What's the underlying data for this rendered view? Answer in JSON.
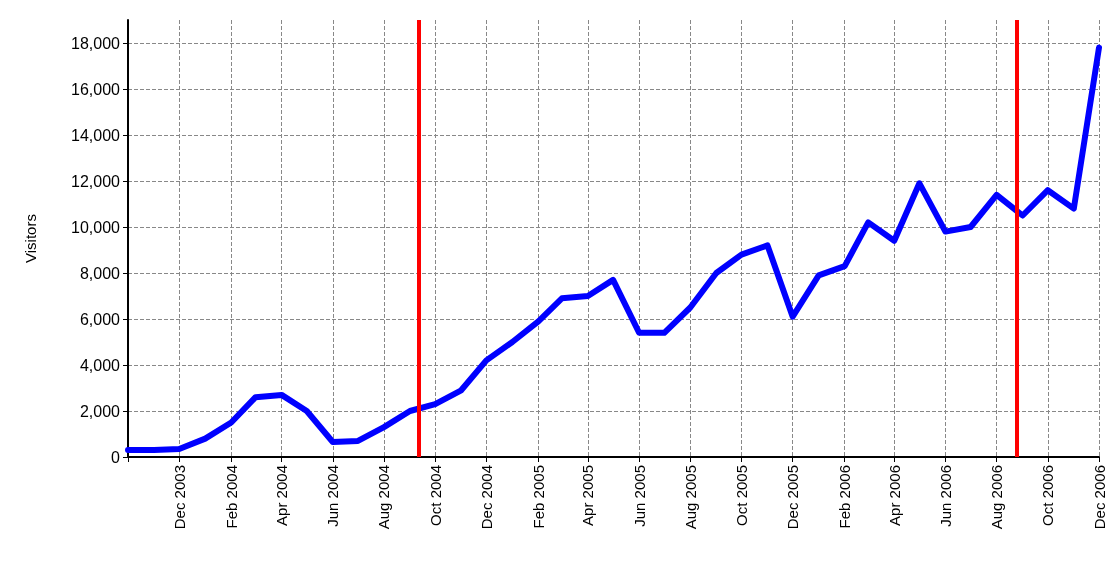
{
  "chart_data": {
    "type": "line",
    "ylabel": "Visitors",
    "x": [
      "2003-10",
      "2003-11",
      "2003-12",
      "2004-01",
      "2004-02",
      "2004-03",
      "2004-04",
      "2004-05",
      "2004-06",
      "2004-07",
      "2004-08",
      "2004-09",
      "2004-10",
      "2004-11",
      "2004-12",
      "2005-01",
      "2005-02",
      "2005-03",
      "2005-04",
      "2005-05",
      "2005-06",
      "2005-07",
      "2005-08",
      "2005-09",
      "2005-10",
      "2005-11",
      "2005-12",
      "2006-01",
      "2006-02",
      "2006-03",
      "2006-04",
      "2006-05",
      "2006-06",
      "2006-07",
      "2006-08",
      "2006-09",
      "2006-10",
      "2006-11",
      "2006-12"
    ],
    "series": [
      {
        "color": "#0000ff",
        "values": [
          300,
          300,
          350,
          800,
          1500,
          2600,
          2700,
          2000,
          650,
          700,
          1300,
          2000,
          2300,
          2900,
          4200,
          5000,
          5900,
          6900,
          7000,
          7700,
          5400,
          5400,
          6500,
          8000,
          8800,
          9200,
          6100,
          7900,
          8300,
          10200,
          9400,
          11900,
          9800,
          10000,
          11400,
          10500,
          11600,
          10800,
          17800
        ]
      }
    ],
    "xlim": [
      "2003-10",
      "2006-12"
    ],
    "xticks": [
      {
        "value": "2003-10",
        "label": null
      },
      {
        "value": "2003-12",
        "label": "Dec 2003"
      },
      {
        "value": "2004-02",
        "label": "Feb 2004"
      },
      {
        "value": "2004-04",
        "label": "Apr 2004"
      },
      {
        "value": "2004-06",
        "label": "Jun 2004"
      },
      {
        "value": "2004-08",
        "label": "Aug 2004"
      },
      {
        "value": "2004-10",
        "label": "Oct 2004"
      },
      {
        "value": "2004-12",
        "label": "Dec 2004"
      },
      {
        "value": "2005-02",
        "label": "Feb 2005"
      },
      {
        "value": "2005-04",
        "label": "Apr 2005"
      },
      {
        "value": "2005-06",
        "label": "Jun 2005"
      },
      {
        "value": "2005-08",
        "label": "Aug 2005"
      },
      {
        "value": "2005-10",
        "label": "Oct 2005"
      },
      {
        "value": "2005-12",
        "label": "Dec 2005"
      },
      {
        "value": "2006-02",
        "label": "Feb 2006"
      },
      {
        "value": "2006-04",
        "label": "Apr 2006"
      },
      {
        "value": "2006-06",
        "label": "Jun 2006"
      },
      {
        "value": "2006-08",
        "label": "Aug 2006"
      },
      {
        "value": "2006-10",
        "label": "Oct 2006"
      },
      {
        "value": "2006-12",
        "label": "Dec 2006"
      }
    ],
    "ylim": [
      0,
      19000
    ],
    "yticks": [
      0,
      {
        "value": 2000,
        "label": "2,000"
      },
      {
        "value": 4000,
        "label": "4,000"
      },
      {
        "value": 6000,
        "label": "6,000"
      },
      {
        "value": 8000,
        "label": "8,000"
      },
      {
        "value": 10000,
        "label": "10,000"
      },
      {
        "value": 12000,
        "label": "12,000"
      },
      {
        "value": 14000,
        "label": "14,000"
      },
      {
        "value": 16000,
        "label": "16,000"
      },
      {
        "value": 18000,
        "label": "18,000"
      }
    ],
    "ref_lines": [
      {
        "axis": "x",
        "value": "2004-09-12",
        "color": "#ff0000"
      },
      {
        "axis": "x",
        "value": "2006-08-25",
        "color": "#ff0000"
      }
    ],
    "grid": true,
    "marker": "none",
    "line_style": "solid"
  }
}
